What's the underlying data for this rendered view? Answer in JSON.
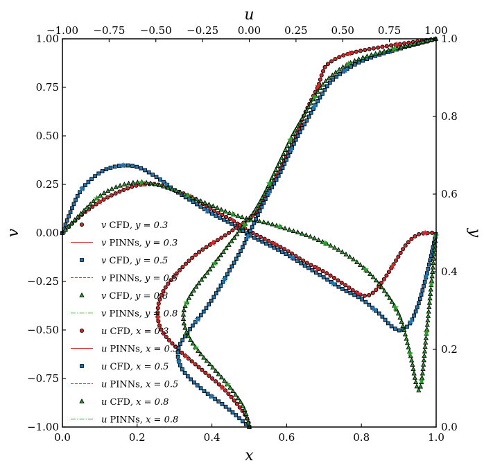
{
  "chart_data": {
    "type": "line",
    "axes": {
      "bottom": {
        "label": "x",
        "range": [
          0.0,
          1.0
        ],
        "ticks": [
          "0.0",
          "0.2",
          "0.4",
          "0.6",
          "0.8",
          "1.0"
        ]
      },
      "left": {
        "label": "v",
        "range": [
          -1.0,
          1.0
        ],
        "ticks": [
          "−1.00",
          "−0.75",
          "−0.50",
          "−0.25",
          "0.00",
          "0.25",
          "0.50",
          "0.75",
          "1.00"
        ]
      },
      "top": {
        "label": "u",
        "range": [
          -1.0,
          1.0
        ],
        "ticks": [
          "−1.00",
          "−0.75",
          "−0.50",
          "−0.25",
          "0.00",
          "0.25",
          "0.50",
          "0.75",
          "1.00"
        ]
      },
      "right": {
        "label": "y",
        "range": [
          0.0,
          1.0
        ],
        "ticks": [
          "0.0",
          "0.2",
          "0.4",
          "0.6",
          "0.8",
          "1.0"
        ]
      }
    },
    "grid": false,
    "legend_position": "lower-left",
    "legend": [
      {
        "var": "v",
        "method": "CFD",
        "cond": ", y = 0.3",
        "style": "circle",
        "color": "#d62728"
      },
      {
        "var": "v",
        "method": "PINNs",
        "cond": ", y = 0.3",
        "style": "solid",
        "color": "#d62728"
      },
      {
        "var": "v",
        "method": "CFD",
        "cond": ", y = 0.5",
        "style": "square",
        "color": "#1f77b4"
      },
      {
        "var": "v",
        "method": "PINNs",
        "cond": ", y = 0.5",
        "style": "dashed",
        "color": "#1f77b4"
      },
      {
        "var": "v",
        "method": "CFD",
        "cond": ", y = 0.8",
        "style": "triangle",
        "color": "#2ca02c"
      },
      {
        "var": "v",
        "method": "PINNs",
        "cond": ", y = 0.8",
        "style": "dashdot",
        "color": "#2ca02c"
      },
      {
        "var": "u",
        "method": "CFD",
        "cond": ", x = 0.3",
        "style": "circle",
        "color": "#d62728"
      },
      {
        "var": "u",
        "method": "PINNs",
        "cond": ", x = 0.3",
        "style": "solid",
        "color": "#d62728"
      },
      {
        "var": "u",
        "method": "CFD",
        "cond": ", x = 0.5",
        "style": "square",
        "color": "#1f77b4"
      },
      {
        "var": "u",
        "method": "PINNs",
        "cond": ", x = 0.5",
        "style": "dashed",
        "color": "#1f77b4"
      },
      {
        "var": "u",
        "method": "CFD",
        "cond": ", x = 0.8",
        "style": "triangle",
        "color": "#2ca02c"
      },
      {
        "var": "u",
        "method": "PINNs",
        "cond": ", x = 0.8",
        "style": "dashdot",
        "color": "#2ca02c"
      }
    ],
    "series": [
      {
        "name": "v CFD / PINNs, y = 0.3",
        "axes": "x-v",
        "color": "#d62728",
        "marker": "circle",
        "dash": "solid",
        "x": [
          0,
          0.05,
          0.1,
          0.15,
          0.2,
          0.25,
          0.3,
          0.35,
          0.4,
          0.45,
          0.5,
          0.55,
          0.6,
          0.65,
          0.7,
          0.75,
          0.8,
          0.83,
          0.86,
          0.89,
          0.92,
          0.95,
          0.98,
          1.0
        ],
        "y": [
          0,
          0.09,
          0.16,
          0.21,
          0.245,
          0.25,
          0.22,
          0.18,
          0.12,
          0.07,
          0.01,
          -0.04,
          -0.09,
          -0.15,
          -0.2,
          -0.26,
          -0.32,
          -0.31,
          -0.24,
          -0.15,
          -0.06,
          -0.01,
          0,
          0
        ]
      },
      {
        "name": "v CFD / PINNs, y = 0.5",
        "axes": "x-v",
        "color": "#1f77b4",
        "marker": "square",
        "dash": "dashed",
        "x": [
          0,
          0.02,
          0.05,
          0.1,
          0.15,
          0.2,
          0.25,
          0.3,
          0.35,
          0.4,
          0.45,
          0.5,
          0.55,
          0.6,
          0.65,
          0.7,
          0.75,
          0.8,
          0.85,
          0.88,
          0.91,
          0.94,
          0.97,
          1.0
        ],
        "y": [
          0,
          0.1,
          0.22,
          0.31,
          0.345,
          0.34,
          0.29,
          0.22,
          0.16,
          0.1,
          0.05,
          -0.01,
          -0.06,
          -0.11,
          -0.17,
          -0.23,
          -0.29,
          -0.34,
          -0.42,
          -0.48,
          -0.5,
          -0.43,
          -0.25,
          0
        ]
      },
      {
        "name": "v CFD / PINNs, y = 0.8",
        "axes": "x-v",
        "color": "#2ca02c",
        "marker": "triangle",
        "dash": "dashdot",
        "x": [
          0,
          0.05,
          0.1,
          0.15,
          0.2,
          0.25,
          0.3,
          0.35,
          0.4,
          0.45,
          0.5,
          0.55,
          0.6,
          0.65,
          0.7,
          0.75,
          0.8,
          0.85,
          0.9,
          0.93,
          0.955,
          0.975,
          1.0
        ],
        "y": [
          0,
          0.1,
          0.19,
          0.24,
          0.26,
          0.25,
          0.22,
          0.18,
          0.14,
          0.1,
          0.07,
          0.05,
          0.02,
          -0.01,
          -0.05,
          -0.1,
          -0.17,
          -0.27,
          -0.42,
          -0.62,
          -0.81,
          -0.5,
          0
        ]
      },
      {
        "name": "u CFD / PINNs, x = 0.3",
        "axes": "u-y",
        "color": "#d62728",
        "marker": "circle",
        "dash": "solid",
        "y": [
          0,
          0.02,
          0.05,
          0.1,
          0.15,
          0.2,
          0.25,
          0.3,
          0.35,
          0.4,
          0.45,
          0.5,
          0.55,
          0.6,
          0.65,
          0.7,
          0.75,
          0.8,
          0.85,
          0.88,
          0.91,
          0.935,
          0.96,
          0.98,
          1.0
        ],
        "u": [
          0,
          -0.01,
          -0.05,
          -0.14,
          -0.26,
          -0.38,
          -0.47,
          -0.49,
          -0.46,
          -0.38,
          -0.27,
          -0.11,
          0.03,
          0.09,
          0.15,
          0.2,
          0.25,
          0.29,
          0.34,
          0.37,
          0.39,
          0.42,
          0.52,
          0.72,
          1.0
        ]
      },
      {
        "name": "u CFD / PINNs, x = 0.5",
        "axes": "u-y",
        "color": "#1f77b4",
        "marker": "square",
        "dash": "dashed",
        "y": [
          0,
          0.05,
          0.1,
          0.15,
          0.2,
          0.25,
          0.3,
          0.35,
          0.4,
          0.45,
          0.5,
          0.55,
          0.6,
          0.65,
          0.7,
          0.75,
          0.8,
          0.85,
          0.9,
          0.95,
          1.0
        ],
        "u": [
          0,
          -0.12,
          -0.26,
          -0.36,
          -0.38,
          -0.32,
          -0.24,
          -0.17,
          -0.11,
          -0.05,
          0.0,
          0.05,
          0.1,
          0.16,
          0.21,
          0.26,
          0.32,
          0.38,
          0.46,
          0.64,
          1.0
        ]
      },
      {
        "name": "u CFD / PINNs, x = 0.8",
        "axes": "u-y",
        "color": "#2ca02c",
        "marker": "triangle",
        "dash": "dashdot",
        "y": [
          0,
          0.05,
          0.1,
          0.15,
          0.2,
          0.25,
          0.3,
          0.35,
          0.4,
          0.45,
          0.5,
          0.55,
          0.6,
          0.65,
          0.7,
          0.75,
          0.8,
          0.85,
          0.9,
          0.95,
          1.0
        ],
        "u": [
          0,
          -0.03,
          -0.1,
          -0.19,
          -0.28,
          -0.34,
          -0.35,
          -0.3,
          -0.22,
          -0.14,
          -0.06,
          0.02,
          0.08,
          0.13,
          0.18,
          0.23,
          0.29,
          0.35,
          0.43,
          0.6,
          1.0
        ]
      }
    ]
  }
}
